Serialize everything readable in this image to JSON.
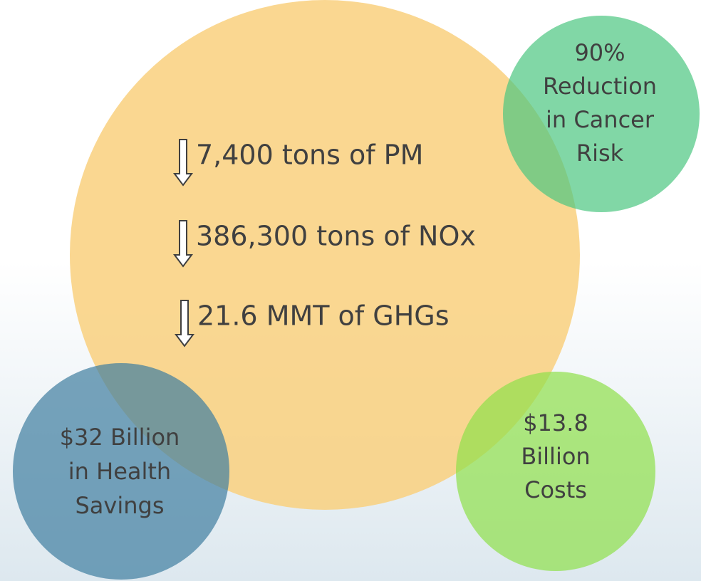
{
  "diagram": {
    "items": [
      "7,400 tons of PM",
      "386,300 tons of NOx",
      "21.6 MMT of GHGs"
    ],
    "bubbles": [
      {
        "lines": [
          "90%",
          "Reduction",
          "in Cancer",
          "Risk"
        ]
      },
      {
        "lines": [
          "$32 Billion",
          "in Health",
          "Savings"
        ]
      },
      {
        "lines": [
          "$13.8",
          "Billion",
          "Costs"
        ]
      }
    ]
  }
}
